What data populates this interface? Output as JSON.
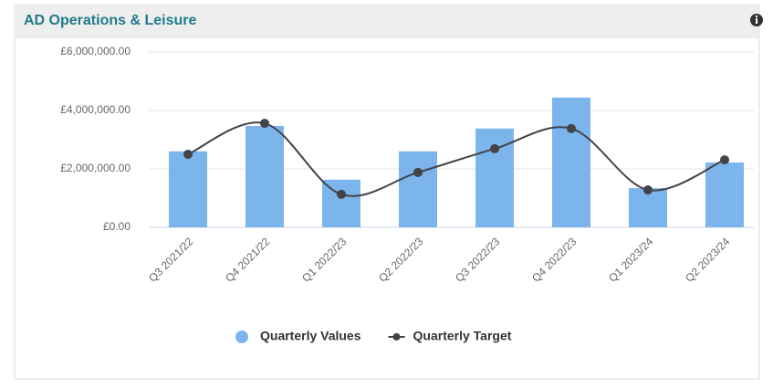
{
  "chart_data": {
    "type": "bar",
    "title": "AD Operations & Leisure",
    "categories": [
      "Q3 2021/22",
      "Q4 2021/22",
      "Q1 2022/23",
      "Q2 2022/23",
      "Q3 2022/23",
      "Q4 2022/23",
      "Q1 2023/24",
      "Q2 2023/24"
    ],
    "series": [
      {
        "name": "Quarterly Values",
        "type": "bar",
        "color": "#7cb5ec",
        "values": [
          2600000,
          3470000,
          1630000,
          2600000,
          3380000,
          4440000,
          1340000,
          2220000
        ]
      },
      {
        "name": "Quarterly Target",
        "type": "line",
        "color": "#434348",
        "values": [
          2500000,
          3560000,
          1130000,
          1880000,
          2690000,
          3380000,
          1280000,
          2310000
        ]
      }
    ],
    "ylim": [
      0,
      6000000
    ],
    "yticks": [
      {
        "value": 0,
        "label": "£0.00"
      },
      {
        "value": 2000000,
        "label": "£2,000,000.00"
      },
      {
        "value": 4000000,
        "label": "£4,000,000.00"
      },
      {
        "value": 6000000,
        "label": "£6,000,000.00"
      }
    ],
    "grid": true,
    "legend": "bottom"
  }
}
